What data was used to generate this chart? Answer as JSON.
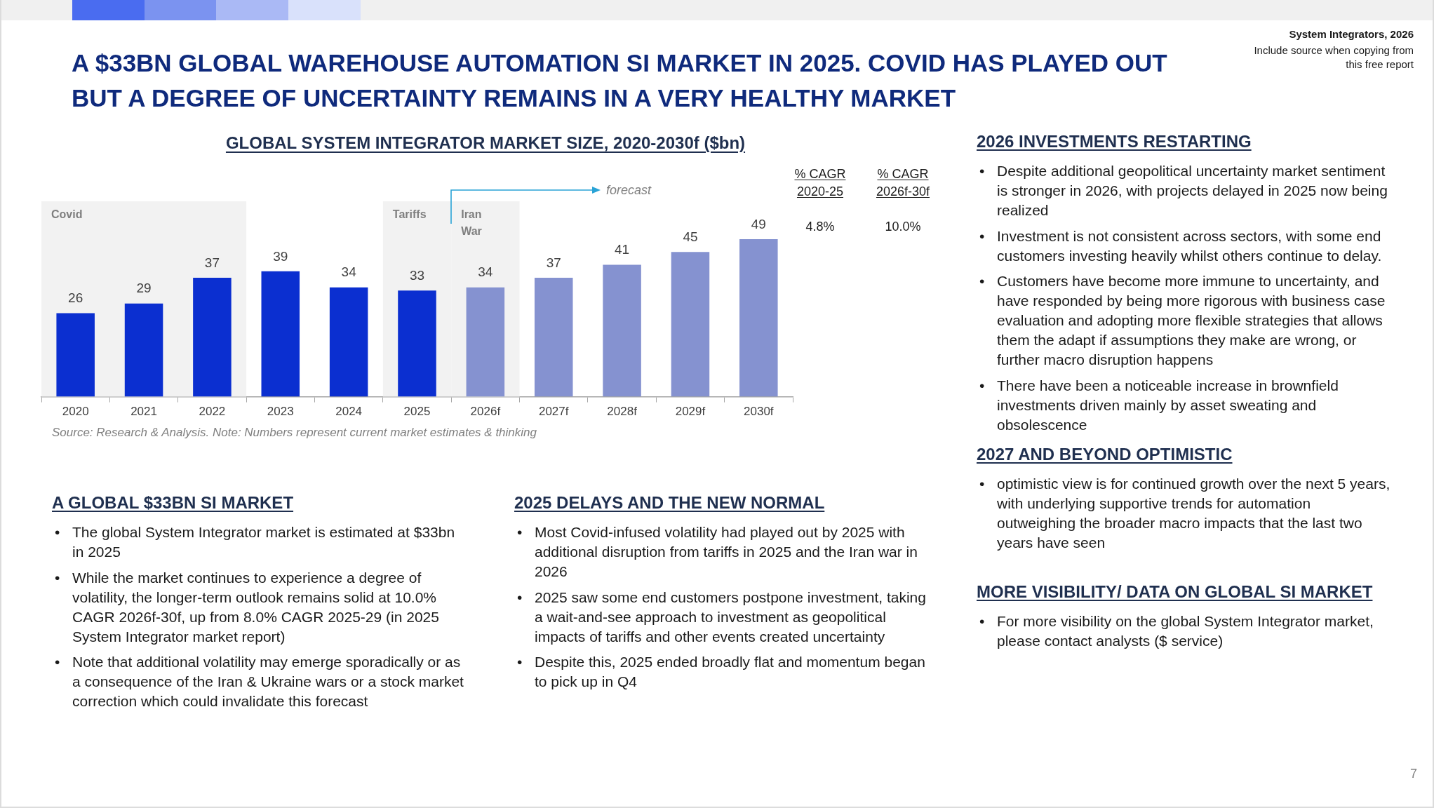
{
  "chart_data": [
    {
      "type": "other",
      "title": "A $33BN GLOBAL WAREHOUSE AUTOMATION SI MARKET IN 2025. COVID HAS PLAYED OUT BUT A DEGREE OF UNCERTAINTY REMAINS IN A VERY HEALTHY MARKET",
      "annotations": [
        "System Integrators, 2026",
        "Include source when copying from this free report",
        "7"
      ]
    },
    {
      "type": "bar",
      "title": "GLOBAL SYSTEM INTEGRATOR MARKET SIZE, 2020-2030f ($bn)",
      "categories": [
        "2020",
        "2021",
        "2022",
        "2023",
        "2024",
        "2025",
        "2026f",
        "2027f",
        "2028f",
        "2029f",
        "2030f"
      ],
      "values": [
        26,
        29,
        37,
        39,
        34,
        33,
        34,
        37,
        41,
        45,
        49
      ],
      "colors": [
        "#0b2fd0",
        "#0b2fd0",
        "#0b2fd0",
        "#0b2fd0",
        "#0b2fd0",
        "#0b2fd0",
        "#8592d0",
        "#8592d0",
        "#8592d0",
        "#8592d0",
        "#8592d0"
      ],
      "data_labels": true,
      "tick_labels": "x",
      "bands": [
        {
          "axis": "x",
          "from": "2020",
          "to": "2022",
          "label": "Covid",
          "color": "#f2f2f2"
        },
        {
          "axis": "x",
          "from": "2025",
          "to": "2025",
          "label": "Tariffs",
          "color": "#f2f2f2"
        },
        {
          "axis": "x",
          "from": "2026f",
          "to": "2026f",
          "label": "Iran War",
          "color": "#f2f2f2"
        }
      ],
      "annotations": [
        "forecast",
        "% CAGR 2020-25",
        "4.8%",
        "% CAGR 2026f-30f",
        "10.0%",
        "Source: Research & Analysis. Note: Numbers represent current market estimates & thinking"
      ]
    },
    {
      "type": "other",
      "title": "A GLOBAL $33BN SI MARKET",
      "annotations": [
        "• The global System Integrator market is estimated at $33bn in 2025",
        "• While the market continues to experience a degree of volatility, the longer-term outlook remains solid at 10.0% CAGR 2026f-30f, up from 8.0% CAGR 2025-29 (in 2025 System Integrator market report)",
        "• Note that additional volatility may emerge sporadically or as a consequence of the Iran & Ukraine wars or a stock market correction which could invalidate this forecast"
      ]
    },
    {
      "type": "other",
      "title": "2025 DELAYS AND THE NEW NORMAL",
      "annotations": [
        "• Most Covid-infused volatility had played out by 2025 with additional disruption from tariffs in 2025 and the Iran war in 2026",
        "• 2025 saw some end customers postpone investment, taking a wait-and-see approach to investment as geopolitical impacts of tariffs and other events created uncertainty",
        "• Despite this, 2025 ended broadly flat and momentum began to pick up in Q4"
      ]
    },
    {
      "type": "other",
      "title": "2026 INVESTMENTS RESTARTING",
      "annotations": [
        "• Despite additional geopolitical uncertainty market sentiment is stronger in 2026, with projects delayed in 2025 now being realized",
        "• Investment is not consistent across sectors, with some end customers investing heavily whilst others continue to delay.",
        "• Customers have become more immune to uncertainty, and have responded by being more rigorous with business case evaluation and adopting more flexible strategies that allows them the adapt if assumptions they make are wrong, or further macro disruption happens",
        "• There have been a noticeable increase in brownfield investments driven mainly by asset sweating and obsolescence"
      ]
    },
    {
      "type": "other",
      "title": "2027 AND BEYOND OPTIMISTIC",
      "annotations": [
        "• optimistic view is for continued growth over the next 5 years, with underlying supportive trends for automation outweighing the broader macro impacts that the last two years have seen"
      ]
    },
    {
      "type": "other",
      "title": "MORE VISIBILITY/ DATA ON GLOBAL SI MARKET",
      "annotations": [
        "• For more visibility on the global System Integrator market, please contact analysts ($ service)"
      ]
    }
  ]
}
